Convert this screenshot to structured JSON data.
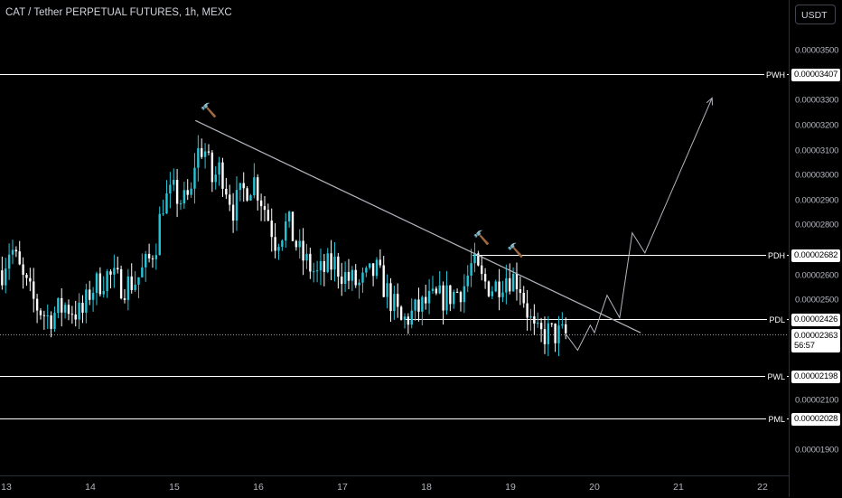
{
  "header": {
    "title": "CAT / Tether PERPETUAL FUTURES, 1h, MEXC"
  },
  "price_axis": {
    "currency_button": "USDT",
    "ticks": [
      {
        "label": "0.00003500",
        "price": 3.5e-05
      },
      {
        "label": "0.00003300",
        "price": 3.3e-05
      },
      {
        "label": "0.00003200",
        "price": 3.2e-05
      },
      {
        "label": "0.00003100",
        "price": 3.1e-05
      },
      {
        "label": "0.00003000",
        "price": 3e-05
      },
      {
        "label": "0.00002900",
        "price": 2.9e-05
      },
      {
        "label": "0.00002800",
        "price": 2.8e-05
      },
      {
        "label": "0.00002600",
        "price": 2.6e-05
      },
      {
        "label": "0.00002500",
        "price": 2.5e-05
      },
      {
        "label": "0.00002100",
        "price": 2.1e-05
      },
      {
        "label": "0.00001900",
        "price": 1.9e-05
      }
    ]
  },
  "levels": [
    {
      "name": "PWH",
      "value": "0.00003407",
      "price": 3.407e-05
    },
    {
      "name": "PDH",
      "value": "0.00002682",
      "price": 2.682e-05
    },
    {
      "name": "PDL",
      "value": "0.00002426",
      "price": 2.426e-05
    },
    {
      "name": "PWL",
      "value": "0.00002198",
      "price": 2.198e-05
    },
    {
      "name": "PML",
      "value": "0.00002028",
      "price": 2.028e-05
    }
  ],
  "current": {
    "price_label": "0.00002363",
    "price": 2.363e-05,
    "countdown": "56:57"
  },
  "time_axis": {
    "labels": [
      {
        "label": "13",
        "day": 13
      },
      {
        "label": "14",
        "day": 14
      },
      {
        "label": "15",
        "day": 15
      },
      {
        "label": "16",
        "day": 16
      },
      {
        "label": "17",
        "day": 17
      },
      {
        "label": "18",
        "day": 18
      },
      {
        "label": "19",
        "day": 19
      },
      {
        "label": "20",
        "day": 20
      },
      {
        "label": "21",
        "day": 21
      },
      {
        "label": "22",
        "day": 22
      }
    ]
  },
  "colors": {
    "up": "#26c6da",
    "down": "#ffffff",
    "background": "#000000",
    "line": "#ffffff",
    "drawing": "#b2b5be"
  },
  "icons": {
    "drawing_marker": "hammer-icon"
  },
  "chart_data": {
    "type": "candlestick",
    "timeframe": "1h",
    "x_unit": "day of month",
    "anchors": [
      [
        12.95,
        2.62e-05
      ],
      [
        13.05,
        2.72e-05
      ],
      [
        13.2,
        2.58e-05
      ],
      [
        13.35,
        2.48e-05
      ],
      [
        13.5,
        2.43e-05
      ],
      [
        13.7,
        2.48e-05
      ],
      [
        13.9,
        2.44e-05
      ],
      [
        14.0,
        2.54e-05
      ],
      [
        14.2,
        2.6e-05
      ],
      [
        14.4,
        2.56e-05
      ],
      [
        14.55,
        2.58e-05
      ],
      [
        14.7,
        2.66e-05
      ],
      [
        14.8,
        2.75e-05
      ],
      [
        14.85,
        2.89e-05
      ],
      [
        15.0,
        2.93e-05
      ],
      [
        15.1,
        2.89e-05
      ],
      [
        15.2,
        2.92e-05
      ],
      [
        15.25,
        3.08e-05
      ],
      [
        15.35,
        3.12e-05
      ],
      [
        15.45,
        2.98e-05
      ],
      [
        15.55,
        3.03e-05
      ],
      [
        15.7,
        2.87e-05
      ],
      [
        15.85,
        2.95e-05
      ],
      [
        15.95,
        2.98e-05
      ],
      [
        16.1,
        2.85e-05
      ],
      [
        16.2,
        2.74e-05
      ],
      [
        16.35,
        2.81e-05
      ],
      [
        16.5,
        2.68e-05
      ],
      [
        16.7,
        2.6e-05
      ],
      [
        16.9,
        2.65e-05
      ],
      [
        17.05,
        2.59e-05
      ],
      [
        17.2,
        2.56e-05
      ],
      [
        17.4,
        2.62e-05
      ],
      [
        17.55,
        2.52e-05
      ],
      [
        17.7,
        2.41e-05
      ],
      [
        17.85,
        2.45e-05
      ],
      [
        18.0,
        2.49e-05
      ],
      [
        18.2,
        2.51e-05
      ],
      [
        18.35,
        2.53e-05
      ],
      [
        18.45,
        2.56e-05
      ],
      [
        18.55,
        2.65e-05
      ],
      [
        18.65,
        2.58e-05
      ],
      [
        18.8,
        2.55e-05
      ],
      [
        18.95,
        2.6e-05
      ],
      [
        19.1,
        2.58e-05
      ],
      [
        19.2,
        2.46e-05
      ],
      [
        19.3,
        2.35e-05
      ],
      [
        19.45,
        2.37e-05
      ],
      [
        19.6,
        2.36e-05
      ],
      [
        19.67,
        2.36e-05
      ]
    ],
    "trendline": {
      "from": [
        15.25,
        3.22e-05
      ],
      "to": [
        20.55,
        2.37e-05
      ]
    },
    "projection_path": [
      [
        19.67,
        2.36e-05
      ],
      [
        19.8,
        2.3e-05
      ],
      [
        19.95,
        2.4e-05
      ],
      [
        20.0,
        2.37e-05
      ],
      [
        20.15,
        2.52e-05
      ],
      [
        20.3,
        2.43e-05
      ],
      [
        20.45,
        2.77e-05
      ],
      [
        20.6,
        2.69e-05
      ],
      [
        21.4,
        3.31e-05
      ]
    ],
    "markers": [
      {
        "icon": "hammer",
        "day": 15.35,
        "price": 3.22e-05
      },
      {
        "icon": "hammer",
        "day": 18.6,
        "price": 2.71e-05
      },
      {
        "icon": "hammer",
        "day": 19.0,
        "price": 2.66e-05
      }
    ]
  }
}
